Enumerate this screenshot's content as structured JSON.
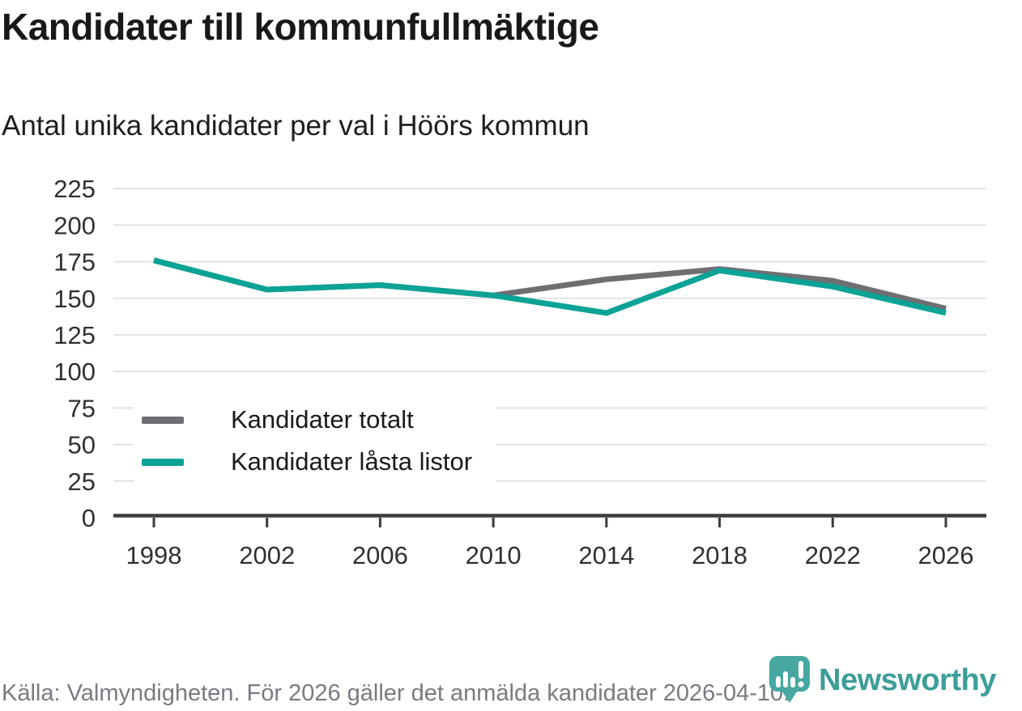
{
  "header": {
    "title": "Kandidater till kommunfullmäktige",
    "subtitle": "Antal unika kandidater per val i Höörs kommun"
  },
  "footer": {
    "source_note": "Källa: Valmyndigheten. För 2026 gäller det anmälda kandidater 2026-04-10."
  },
  "brand": {
    "name": "Newsworthy",
    "icon": "newsworthy-speech-bubble-barchart-icon",
    "text_color": "#3d9e99",
    "mark_color": "#46a8a0"
  },
  "colors": {
    "background": "#ffffff",
    "grid": "#e3e3e3",
    "axis": "#3b3b40",
    "tick_text": "#303030",
    "series_total": "#6e6e73",
    "series_locked": "#0ba396"
  },
  "chart_data": {
    "type": "line",
    "title": "Kandidater till kommunfullmäktige",
    "subtitle": "Antal unika kandidater per val i Höörs kommun",
    "categories": [
      1998,
      2002,
      2006,
      2010,
      2014,
      2018,
      2022,
      2026
    ],
    "series": [
      {
        "name": "Kandidater totalt",
        "color": "#6e6e73",
        "values": [
          176,
          156,
          159,
          152,
          163,
          170,
          162,
          143
        ]
      },
      {
        "name": "Kandidater låsta listor",
        "color": "#0ba396",
        "values": [
          176,
          156,
          159,
          152,
          140,
          169,
          158,
          140
        ]
      }
    ],
    "y_ticks": [
      0,
      25,
      50,
      75,
      100,
      125,
      150,
      175,
      200,
      225
    ],
    "ylim": [
      0,
      225
    ],
    "xlabel": "",
    "ylabel": "",
    "grid": "horizontal",
    "legend_position": "inside-bottom-left",
    "line_width": 7
  }
}
